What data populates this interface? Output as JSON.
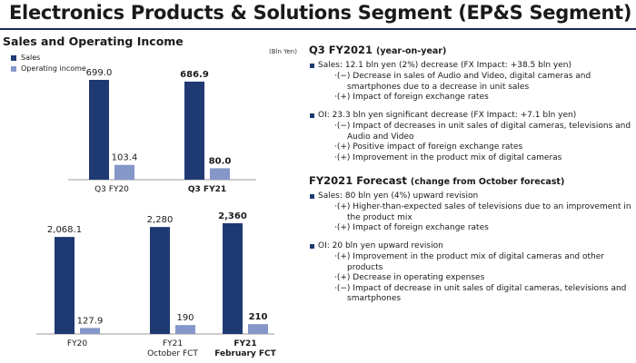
{
  "header": {
    "title": "Electronics Products & Solutions Segment (EP&S Segment)"
  },
  "left": {
    "title": "Sales and Operating Income",
    "unit": "(Bln Yen)",
    "legend": [
      {
        "label": "Sales",
        "color": "#1f3a73"
      },
      {
        "label": "Operating income",
        "color": "#8597c9"
      }
    ]
  },
  "chart_data": [
    {
      "type": "bar",
      "title": "",
      "categories": [
        "Q3 FY20",
        "Q3 FY21"
      ],
      "series": [
        {
          "name": "Sales",
          "values": [
            699.0,
            686.9
          ]
        },
        {
          "name": "Operating income",
          "values": [
            103.4,
            80.0
          ]
        }
      ],
      "value_labels": {
        "Sales": [
          "699.0",
          "686.9"
        ],
        "Operating income": [
          "103.4",
          "80.0"
        ]
      },
      "bold_categories": [
        false,
        true
      ],
      "ylim": [
        0,
        760
      ]
    },
    {
      "type": "bar",
      "title": "",
      "categories": [
        "FY20",
        "FY21\nOctober FCT",
        "FY21\nFebruary FCT"
      ],
      "series": [
        {
          "name": "Sales",
          "values": [
            2068.1,
            2280,
            2360
          ]
        },
        {
          "name": "Operating income",
          "values": [
            127.9,
            190,
            210
          ]
        }
      ],
      "value_labels": {
        "Sales": [
          "2,068.1",
          "2,280",
          "2,360"
        ],
        "Operating income": [
          "127.9",
          "190",
          "210"
        ]
      },
      "bold_categories": [
        false,
        false,
        true
      ],
      "ylim": [
        0,
        2550
      ]
    }
  ],
  "right": {
    "q3": {
      "title": "Q3 FY2021",
      "note": "(year-on-year)",
      "bullets": [
        {
          "text": "Sales: 12.1 bln yen (2%) decrease (FX Impact: +38.5 bln yen)",
          "subs": [
            "·(−) Decrease in sales of Audio and Video, digital cameras and smartphones due to a decrease in unit sales",
            "·(+) Impact of foreign exchange rates"
          ]
        },
        {
          "text": "OI: 23.3 bln yen significant decrease (FX Impact: +7.1 bln yen)",
          "subs": [
            "·(−) Impact of decreases in unit sales of digital cameras, televisions and Audio and Video",
            "·(+) Positive impact of foreign exchange rates",
            "·(+) Improvement in the product mix of digital cameras"
          ]
        }
      ]
    },
    "forecast": {
      "title": "FY2021 Forecast",
      "note": "(change from October forecast)",
      "bullets": [
        {
          "text": "Sales: 80 bln yen (4%) upward revision",
          "subs": [
            "·(+) Higher-than-expected sales of televisions due to an improvement in the product mix",
            "·(+) Impact of foreign exchange rates"
          ]
        },
        {
          "text": "OI: 20 bln yen upward revision",
          "subs": [
            "·(+) Improvement in the product mix of digital cameras and other products",
            "·(+) Decrease in operating expenses",
            "·(−) Impact of decrease in unit sales of digital cameras, televisions and smartphones"
          ]
        }
      ]
    }
  }
}
